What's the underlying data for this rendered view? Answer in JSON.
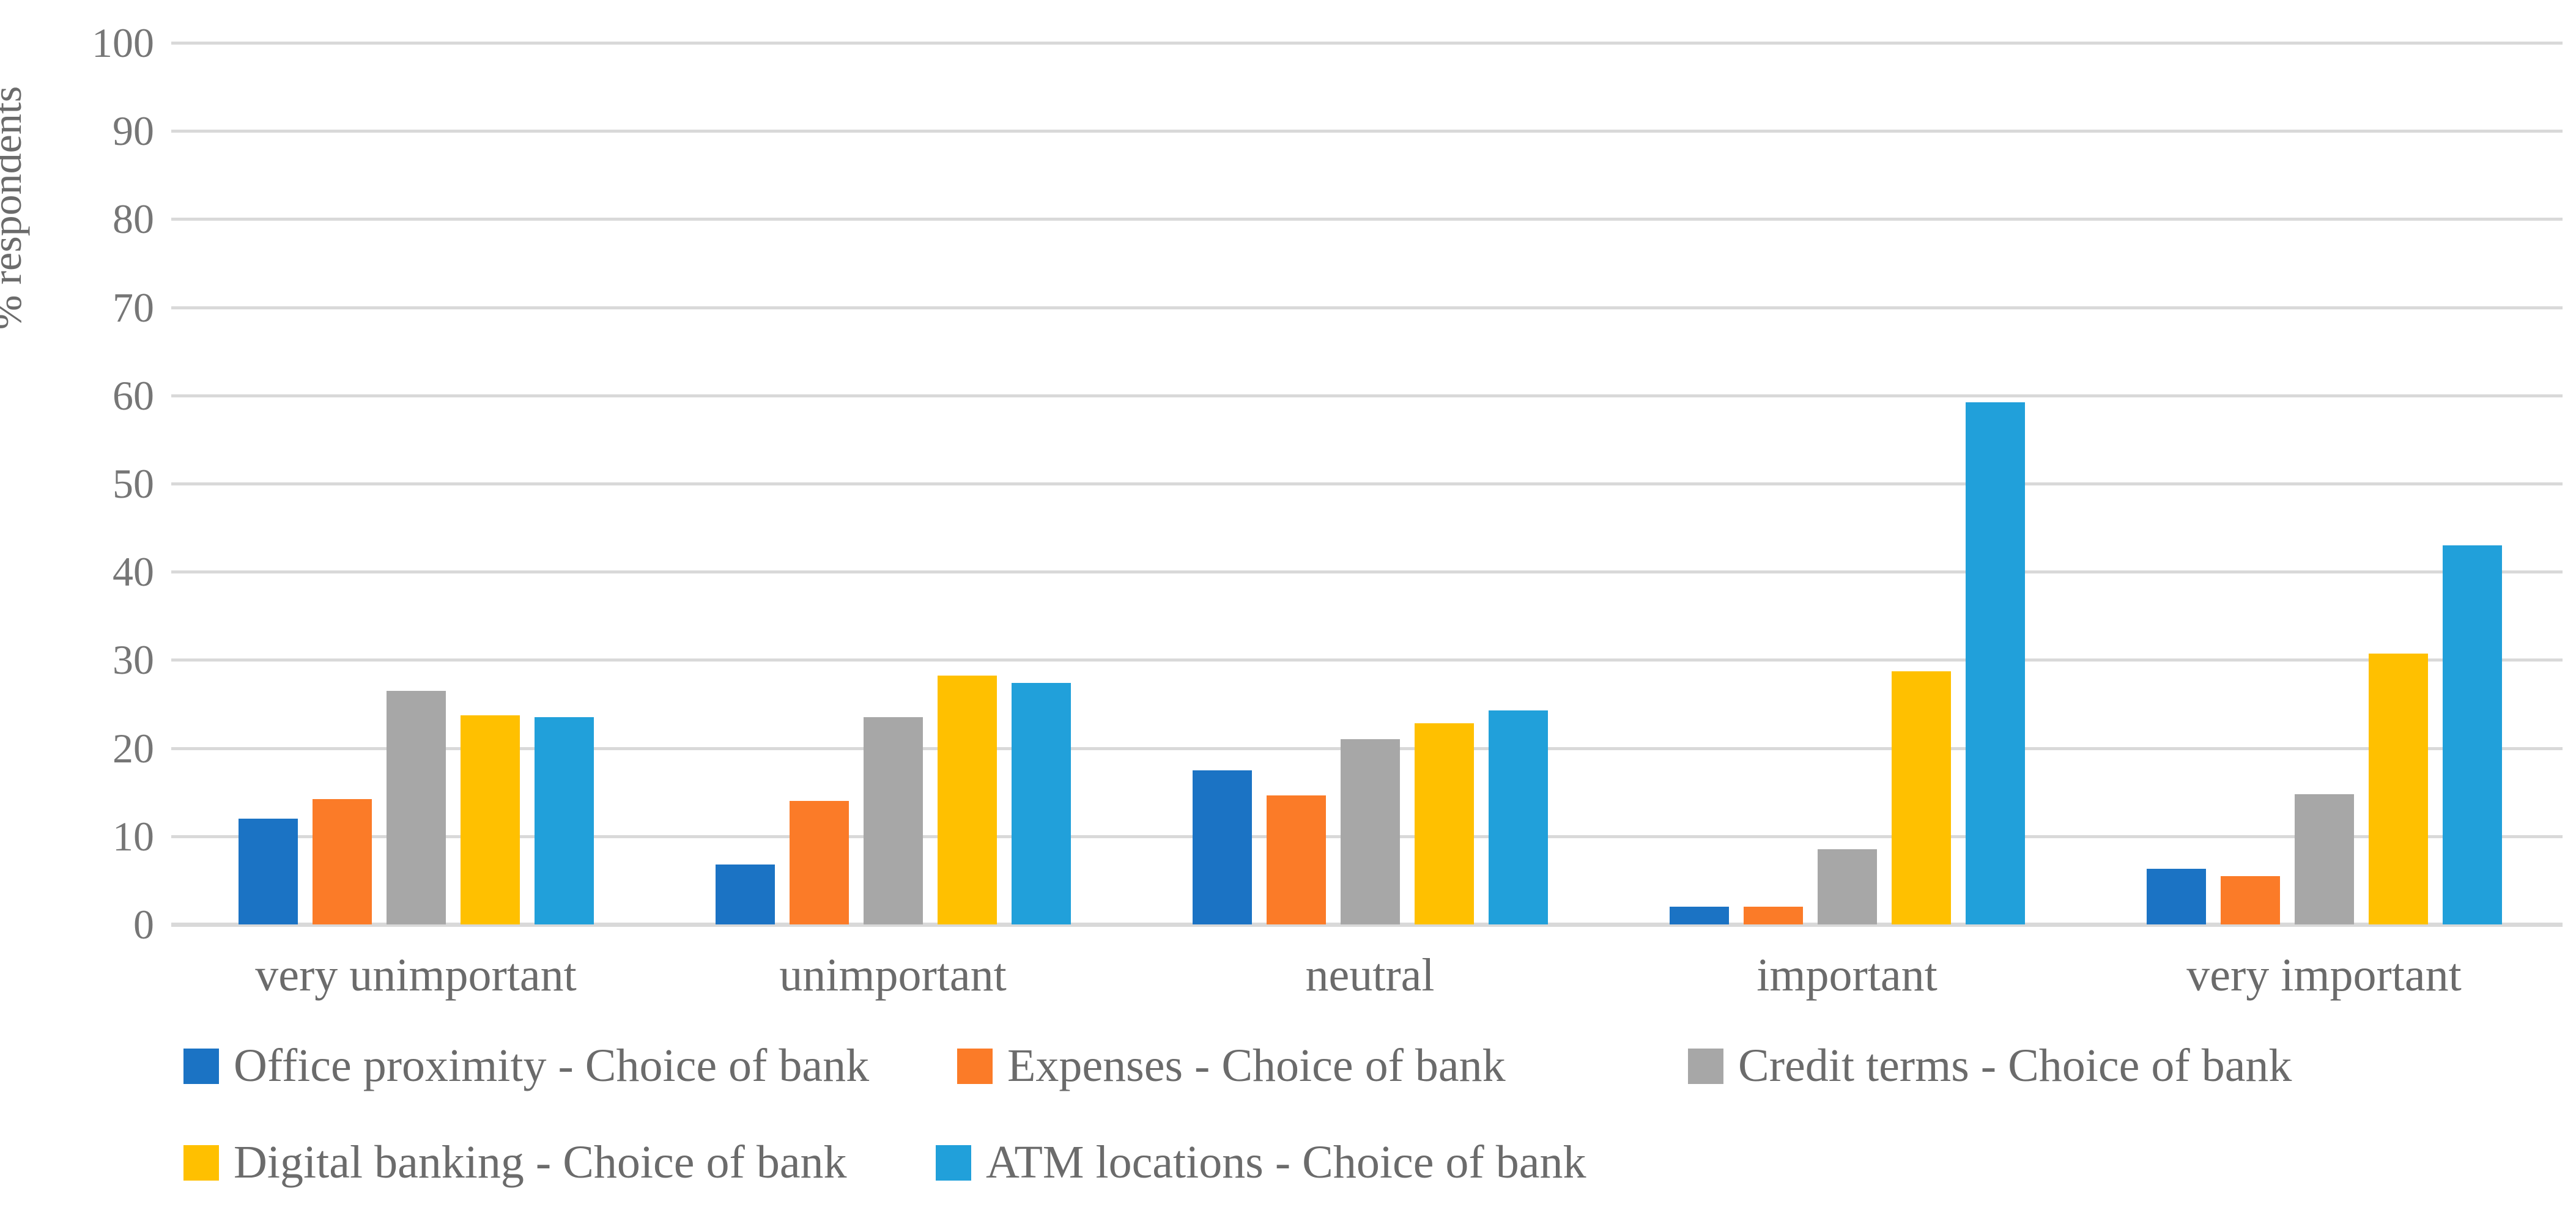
{
  "chart_data": {
    "type": "bar",
    "title": "",
    "ylabel": "% respondents",
    "xlabel": "",
    "ylim": [
      0,
      100
    ],
    "yticks": [
      0,
      10,
      20,
      30,
      40,
      50,
      60,
      70,
      80,
      90,
      100
    ],
    "grid": true,
    "legend_position": "bottom",
    "categories": [
      "very unimportant",
      "unimportant",
      "neutral",
      "important",
      "very important"
    ],
    "series": [
      {
        "name": "Office proximity - Choice of bank",
        "color": "#1B73C4",
        "values": [
          12.0,
          6.8,
          17.5,
          2.0,
          6.3
        ]
      },
      {
        "name": "Expenses - Choice of bank",
        "color": "#FB7B28",
        "values": [
          14.2,
          14.0,
          14.6,
          2.0,
          5.5
        ]
      },
      {
        "name": "Credit terms - Choice of bank",
        "color": "#A7A7A7",
        "values": [
          26.5,
          23.5,
          21.0,
          8.5,
          14.8
        ]
      },
      {
        "name": "Digital banking - Choice of bank",
        "color": "#FFC000",
        "values": [
          23.7,
          28.2,
          22.8,
          28.7,
          30.7
        ]
      },
      {
        "name": "ATM locations - Choice of bank",
        "color": "#21A0DA",
        "values": [
          23.5,
          27.4,
          24.3,
          59.2,
          43.0
        ]
      }
    ]
  },
  "colors": {
    "gridline": "#d9d9d9",
    "axis_text": "#6b6b6b",
    "background": "#ffffff"
  }
}
